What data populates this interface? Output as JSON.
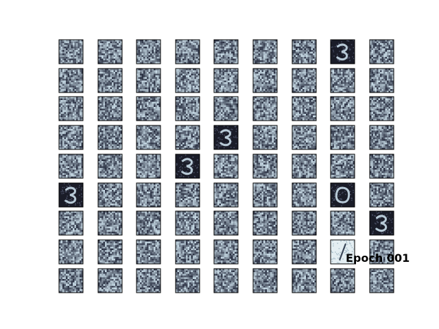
{
  "figure": {
    "epoch_label": "Epoch 001",
    "grid": {
      "rows": 9,
      "cols": 9
    },
    "colormap": "bone",
    "colors": {
      "background": "#ffffff",
      "cell_border": "#000000",
      "noise_dark": "#2a3042",
      "noise_light": "#c8dbe6",
      "digit_stroke": "#b7c9d6"
    },
    "digit_cells": [
      {
        "row": 0,
        "col": 7,
        "digit": "3"
      },
      {
        "row": 3,
        "col": 4,
        "digit": "3"
      },
      {
        "row": 4,
        "col": 3,
        "digit": "3"
      },
      {
        "row": 5,
        "col": 0,
        "digit": "3"
      },
      {
        "row": 5,
        "col": 7,
        "digit": "0"
      },
      {
        "row": 6,
        "col": 8,
        "digit": "3"
      },
      {
        "row": 7,
        "col": 7,
        "digit": "1"
      }
    ]
  }
}
